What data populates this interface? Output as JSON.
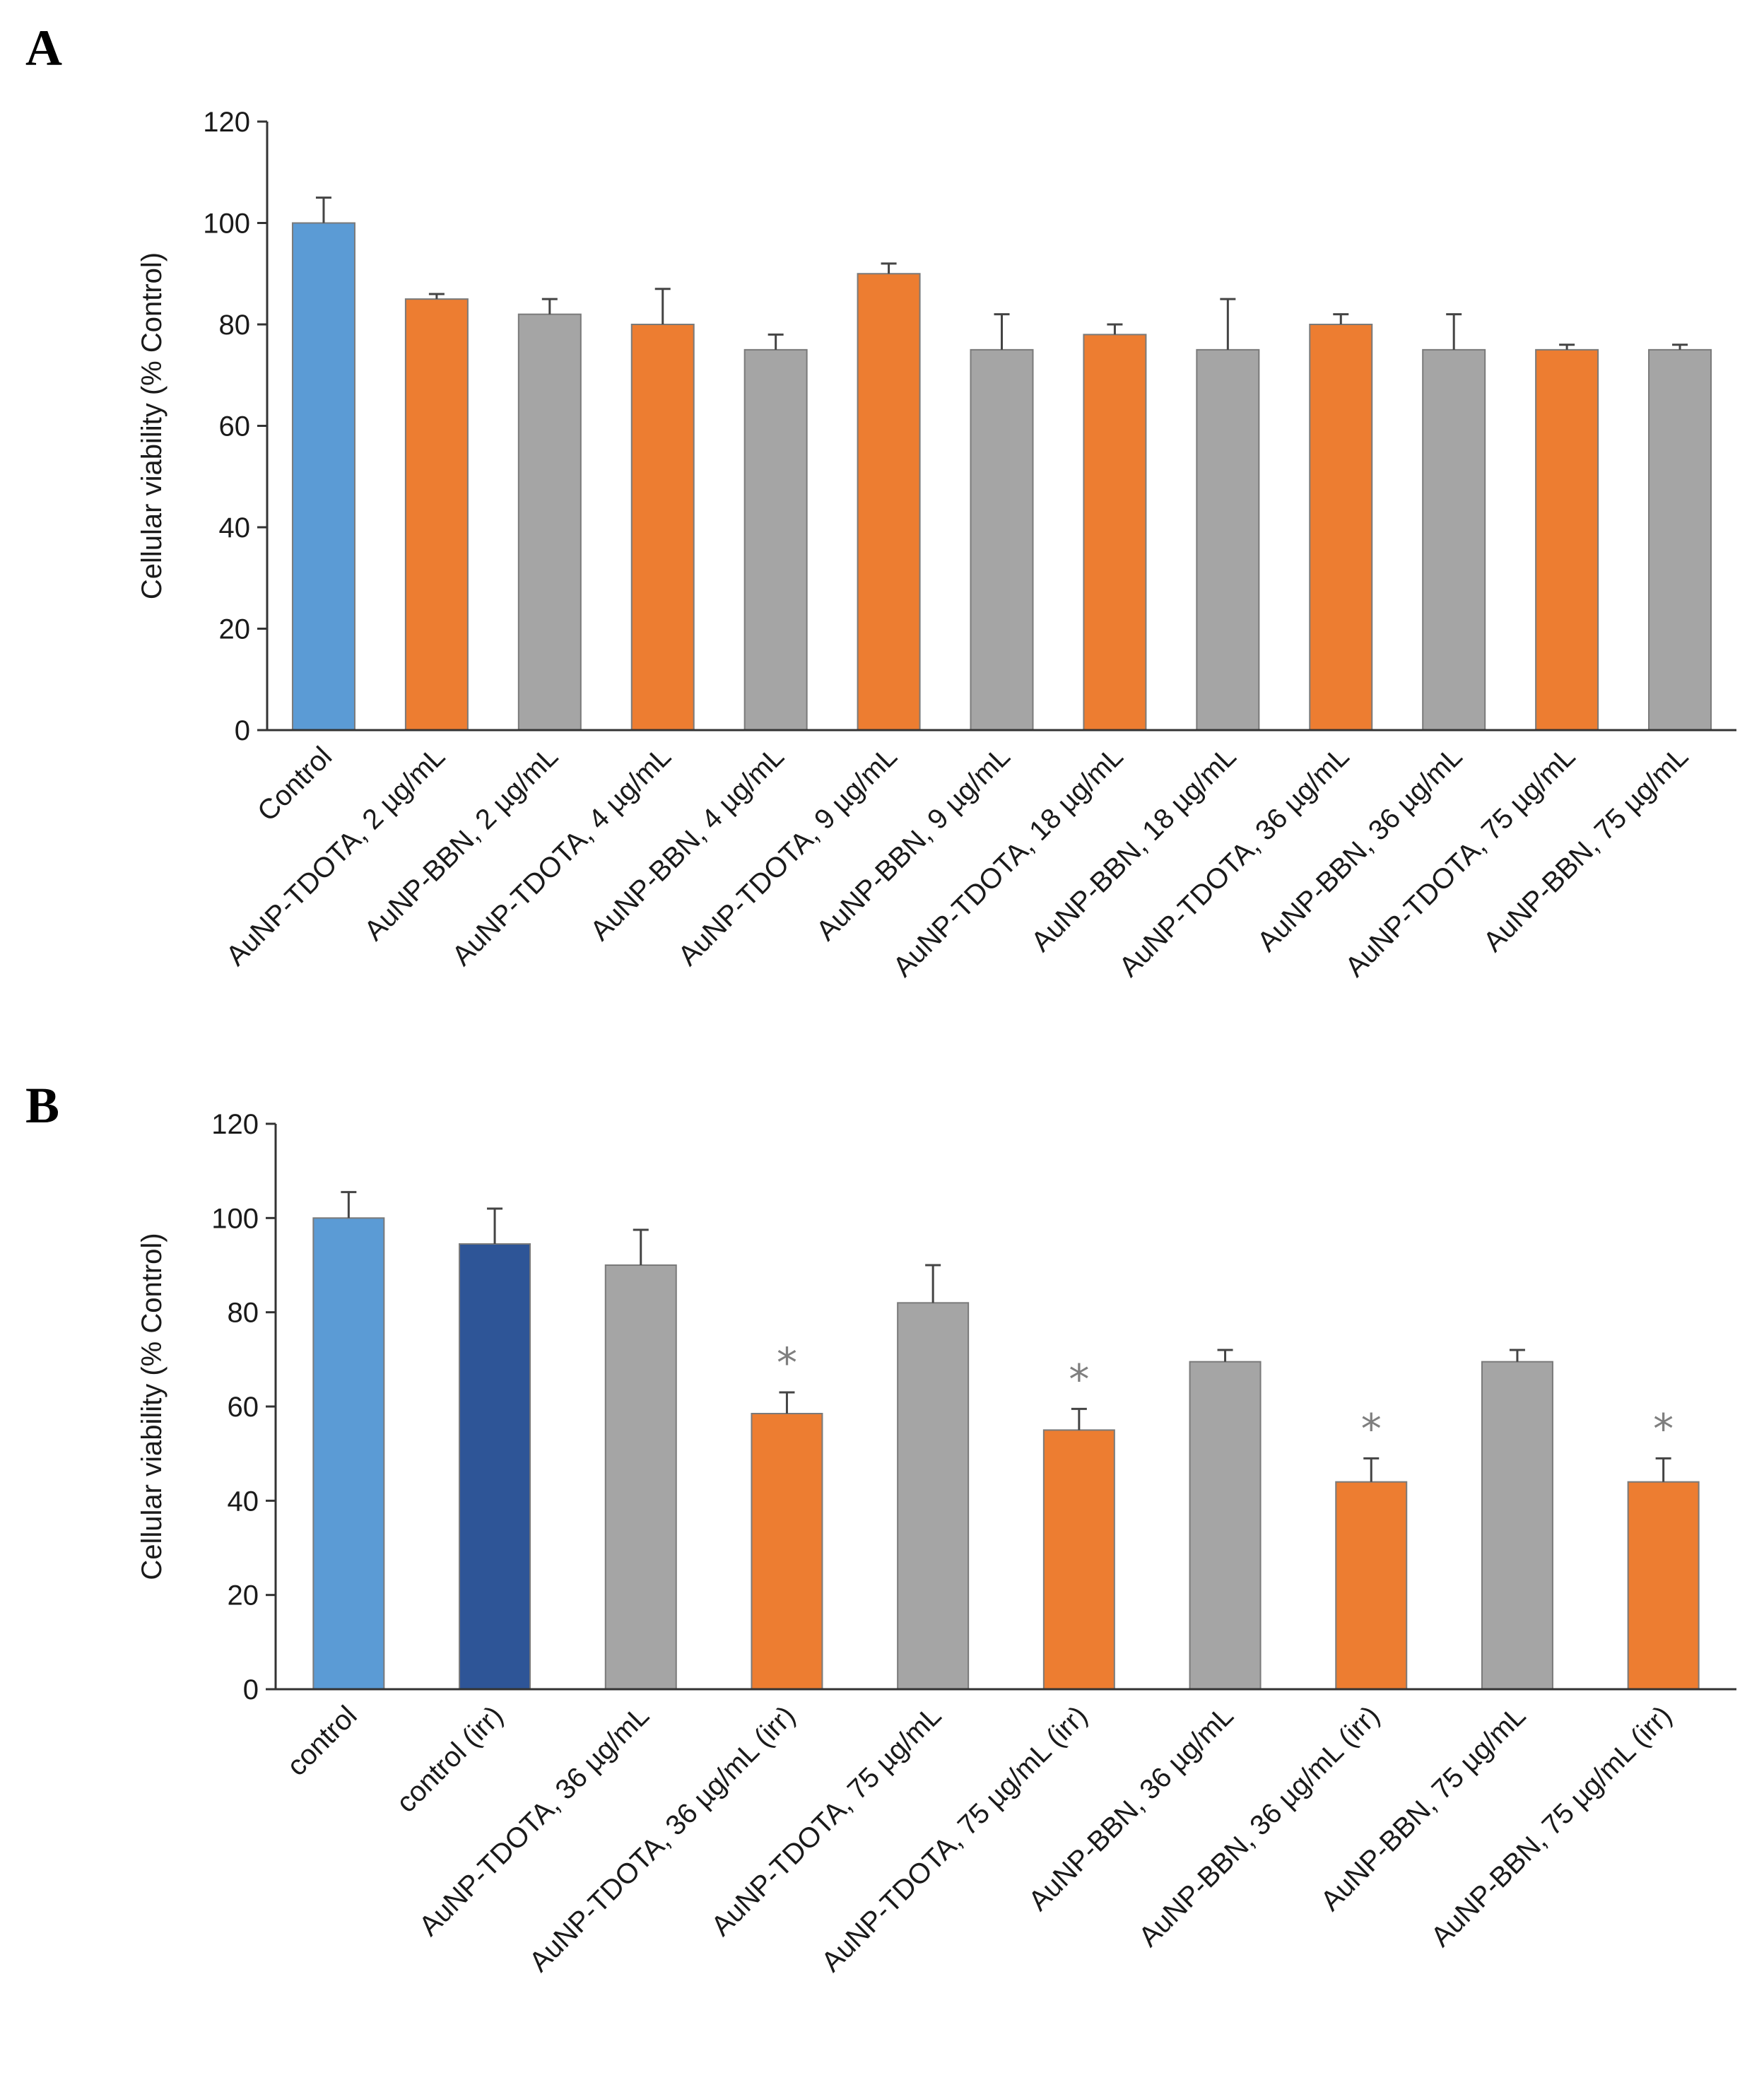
{
  "chart_data": [
    {
      "panel": "A",
      "type": "bar",
      "ylabel": "Cellular viability (% Control)",
      "xlabel": "",
      "ylim": [
        0,
        120
      ],
      "yticks": [
        0,
        20,
        40,
        60,
        80,
        100,
        120
      ],
      "grid": false,
      "categories": [
        "Control",
        "AuNP-TDOTA, 2 µg/mL",
        "AuNP-BBN, 2 µg/mL",
        "AuNP-TDOTA, 4 µg/mL",
        "AuNP-BBN, 4 µg/mL",
        "AuNP-TDOTA, 9 µg/mL",
        "AuNP-BBN, 9 µg/mL",
        "AuNP-TDOTA, 18 µg/mL",
        "AuNP-BBN, 18 µg/mL",
        "AuNP-TDOTA, 36 µg/mL",
        "AuNP-BBN, 36 µg/mL",
        "AuNP-TDOTA, 75 µg/mL",
        "AuNP-BBN, 75 µg/mL"
      ],
      "values": [
        100,
        85,
        82,
        80,
        75,
        90,
        75,
        78,
        75,
        80,
        75,
        75,
        75
      ],
      "errors": [
        5,
        1,
        3,
        7,
        3,
        2,
        7,
        2,
        10,
        2,
        7,
        1,
        1
      ],
      "colors": [
        "#5b9bd5",
        "#ed7d31",
        "#a5a5a5",
        "#ed7d31",
        "#a5a5a5",
        "#ed7d31",
        "#a5a5a5",
        "#ed7d31",
        "#a5a5a5",
        "#ed7d31",
        "#a5a5a5",
        "#ed7d31",
        "#a5a5a5"
      ],
      "significance": [
        false,
        false,
        false,
        false,
        false,
        false,
        false,
        false,
        false,
        false,
        false,
        false,
        false
      ]
    },
    {
      "panel": "B",
      "type": "bar",
      "ylabel": "Cellular viability (% Control)",
      "xlabel": "",
      "ylim": [
        0,
        120
      ],
      "yticks": [
        0,
        20,
        40,
        60,
        80,
        100,
        120
      ],
      "grid": false,
      "categories": [
        "control",
        "control (irr)",
        "AuNP-TDOTA, 36 µg/mL",
        "AuNP-TDOTA, 36 µg/mL (irr)",
        "AuNP-TDOTA, 75 µg/mL",
        "AuNP-TDOTA, 75 µg/mL (irr)",
        "AuNP-BBN, 36 µg/mL",
        "AuNP-BBN, 36 µg/mL (irr)",
        "AuNP-BBN, 75 µg/mL",
        "AuNP-BBN, 75 µg/mL (irr)"
      ],
      "values": [
        100,
        94.5,
        90,
        58.5,
        82,
        55,
        69.5,
        44,
        69.5,
        44
      ],
      "errors": [
        5.5,
        7.5,
        7.5,
        4.5,
        8,
        4.5,
        2.5,
        5,
        2.5,
        5
      ],
      "colors": [
        "#5b9bd5",
        "#2e5597",
        "#a5a5a5",
        "#ed7d31",
        "#a5a5a5",
        "#ed7d31",
        "#a5a5a5",
        "#ed7d31",
        "#a5a5a5",
        "#ed7d31"
      ],
      "significance": [
        false,
        false,
        false,
        true,
        false,
        true,
        false,
        true,
        false,
        true
      ],
      "significance_marker": "*"
    }
  ]
}
